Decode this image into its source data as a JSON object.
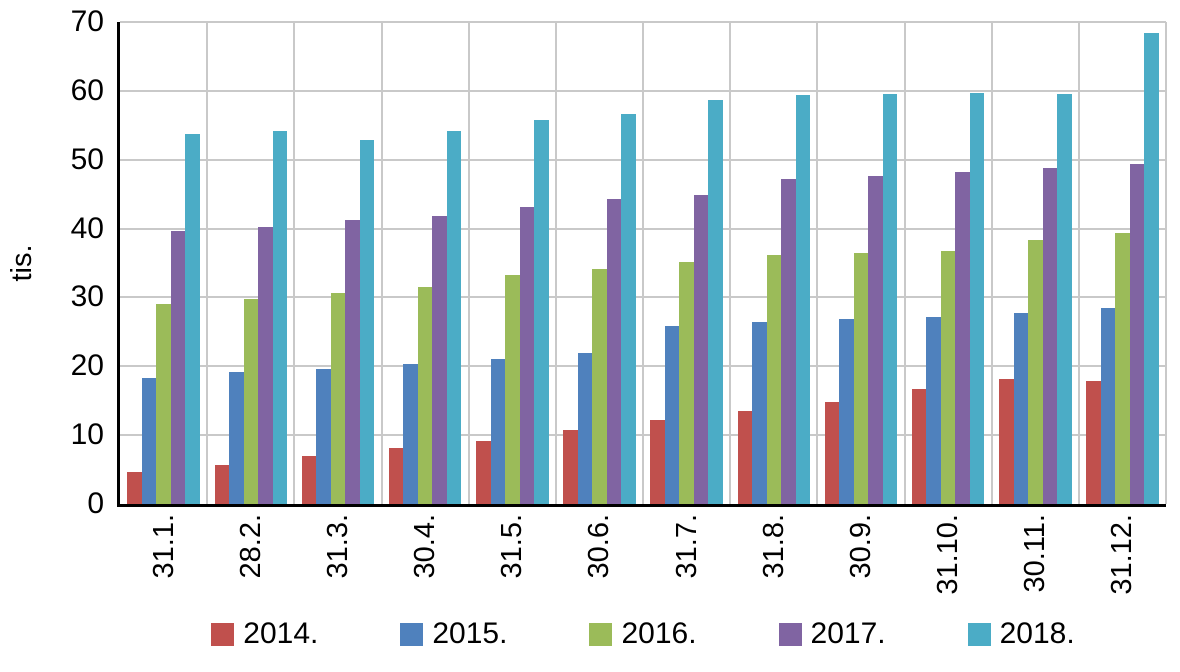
{
  "chart_data": {
    "type": "bar",
    "title": "",
    "ylabel": "tis.",
    "xlabel": "",
    "ylim": [
      0,
      70
    ],
    "yticks": [
      0,
      10,
      20,
      30,
      40,
      50,
      60,
      70
    ],
    "grid": true,
    "legend_position": "bottom",
    "categories": [
      "31.1.",
      "28.2.",
      "31.3.",
      "30.4.",
      "31.5.",
      "30.6.",
      "31.7.",
      "31.8.",
      "30.9.",
      "31.10.",
      "30.11.",
      "31.12."
    ],
    "series": [
      {
        "name": "2014.",
        "color": "#C0504D",
        "values": [
          4.7,
          5.7,
          7.0,
          8.1,
          9.2,
          10.7,
          12.2,
          13.5,
          14.8,
          16.7,
          18.1,
          17.9
        ]
      },
      {
        "name": "2015.",
        "color": "#4F81BD",
        "values": [
          18.3,
          19.2,
          19.6,
          20.3,
          21.1,
          21.9,
          25.9,
          26.5,
          26.9,
          27.2,
          27.8,
          28.4
        ]
      },
      {
        "name": "2016.",
        "color": "#9BBB59",
        "values": [
          29.0,
          29.7,
          30.6,
          31.5,
          33.2,
          34.2,
          35.2,
          36.1,
          36.4,
          36.7,
          38.4,
          39.4
        ]
      },
      {
        "name": "2017.",
        "color": "#8064A2",
        "values": [
          39.7,
          40.3,
          41.2,
          41.8,
          43.1,
          44.3,
          44.9,
          47.2,
          47.7,
          48.2,
          48.8,
          49.4
        ]
      },
      {
        "name": "2018.",
        "color": "#4BACC6",
        "values": [
          53.7,
          54.2,
          52.9,
          54.2,
          55.8,
          56.7,
          58.6,
          59.4,
          59.6,
          59.7,
          59.6,
          68.4
        ]
      }
    ]
  },
  "colors": {
    "background": "#FFFFFF",
    "gridline": "#C9C9C9",
    "axis": "#000000",
    "text": "#000000"
  }
}
